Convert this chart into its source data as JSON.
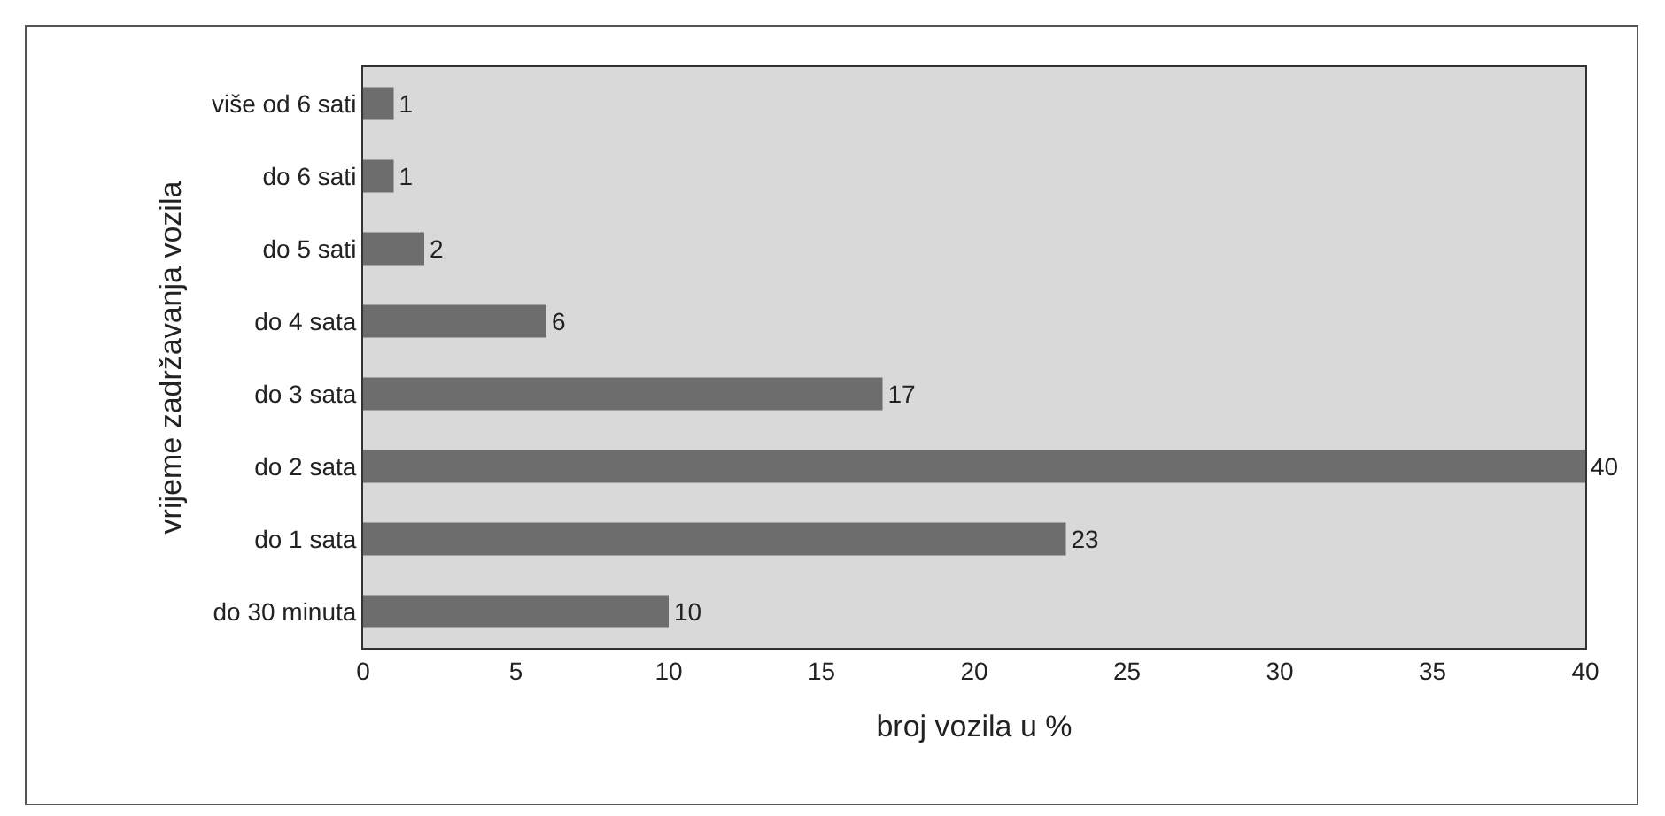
{
  "chart_data": {
    "type": "bar",
    "orientation": "horizontal",
    "xlabel": "broj vozila u %",
    "ylabel": "vrijeme zadržavanja vozila",
    "categories": [
      "više od 6 sati",
      "do 6 sati",
      "do 5 sati",
      "do 4 sata",
      "do 3 sata",
      "do 2 sata",
      "do 1 sata",
      "do 30 minuta"
    ],
    "values": [
      1,
      1,
      2,
      6,
      17,
      40,
      23,
      10
    ],
    "color": "#6d6d6e",
    "xlim": [
      0,
      40
    ],
    "xticks": [
      0,
      5,
      10,
      15,
      20,
      25,
      30,
      35,
      40
    ],
    "grid": false,
    "legend": false,
    "data_labels": true
  }
}
